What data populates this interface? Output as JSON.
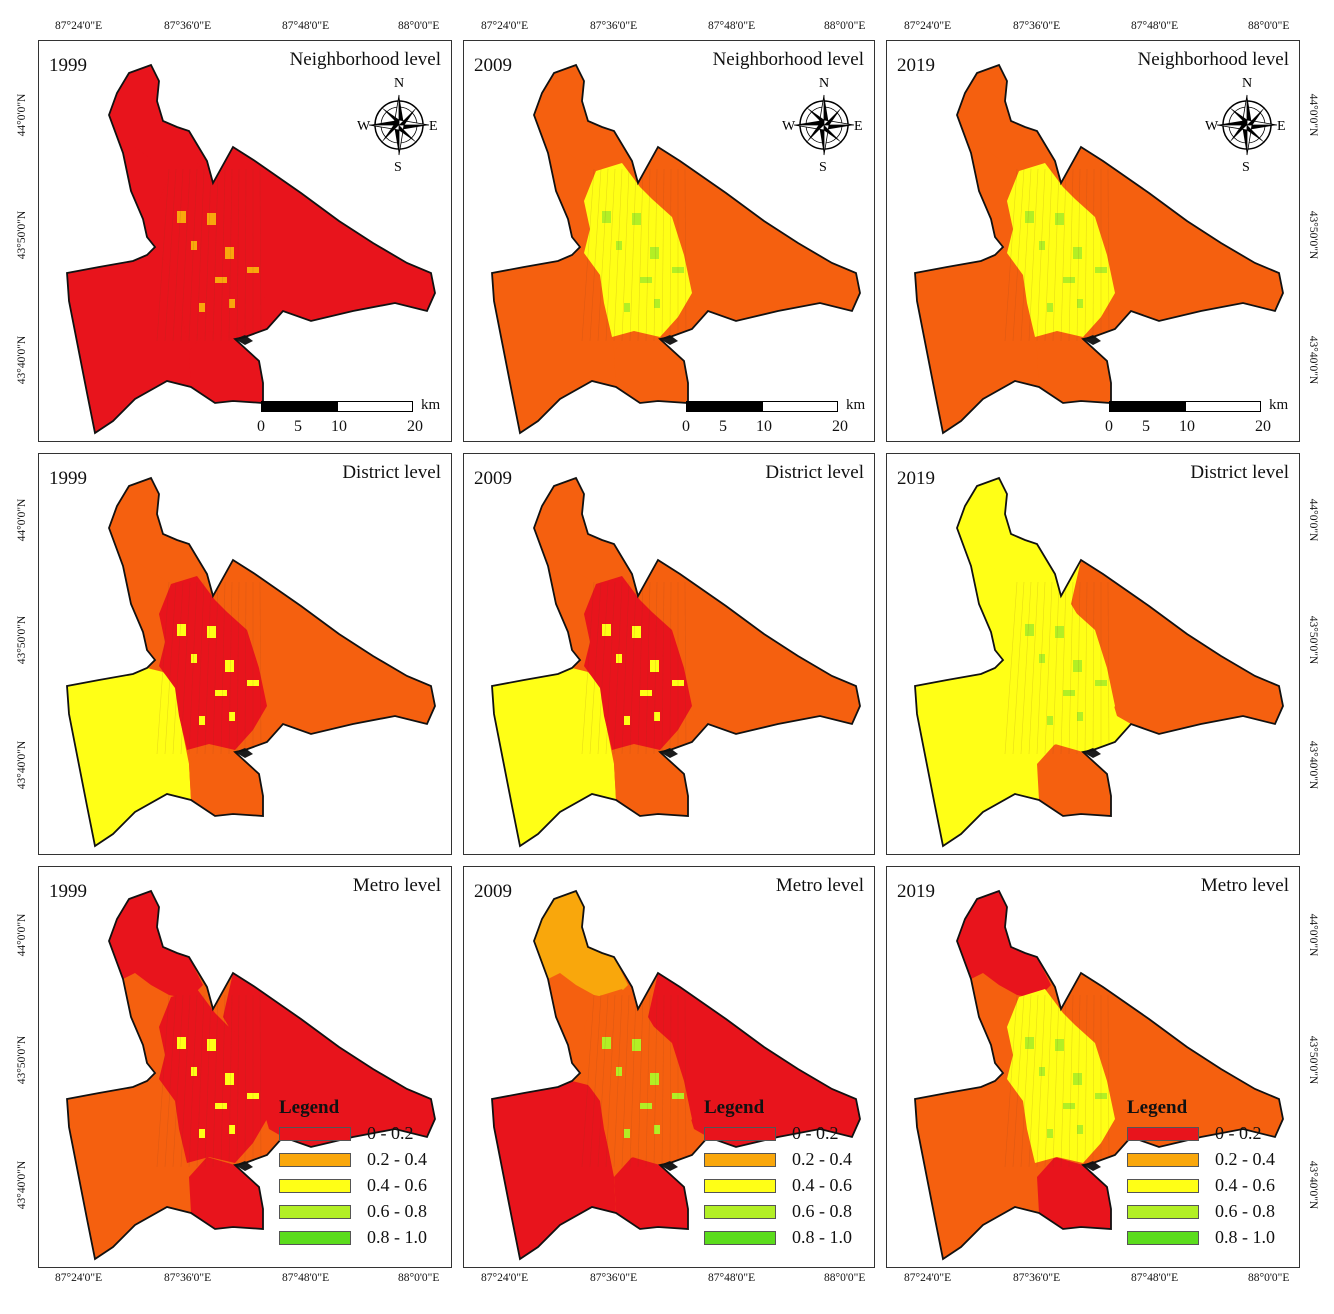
{
  "axes": {
    "lon_ticks": [
      "87°24'0\"E",
      "87°36'0\"E",
      "87°48'0\"E",
      "88°0'0\"E"
    ],
    "lat_ticks": [
      "44°0'0\"N",
      "43°50'0\"N",
      "43°40'0\"N"
    ]
  },
  "colors": {
    "c1": "#e8141c",
    "c2": "#f5600f",
    "c3": "#f9a70c",
    "c4": "#ffff16",
    "c5": "#b2ef25",
    "c6": "#5bdc1c"
  },
  "rows": [
    {
      "level": "Neighborhood level",
      "panels": [
        {
          "year": "1999",
          "base": "c1",
          "core": "c1",
          "west": "c1",
          "south": "c1",
          "north": "c1",
          "east": "c1",
          "accent": "c3"
        },
        {
          "year": "2009",
          "base": "c2",
          "core": "c4",
          "west": "c2",
          "south": "c2",
          "north": "c2",
          "east": "c2",
          "accent": "c5"
        },
        {
          "year": "2019",
          "base": "c2",
          "core": "c4",
          "west": "c2",
          "south": "c2",
          "north": "c2",
          "east": "c2",
          "accent": "c5"
        }
      ]
    },
    {
      "level": "District level",
      "panels": [
        {
          "year": "1999",
          "base": "c2",
          "core": "c1",
          "west": "c4",
          "south": "c2",
          "north": "c2",
          "east": "c2",
          "accent": "c4"
        },
        {
          "year": "2009",
          "base": "c2",
          "core": "c1",
          "west": "c4",
          "south": "c2",
          "north": "c2",
          "east": "c2",
          "accent": "c4"
        },
        {
          "year": "2019",
          "base": "c4",
          "core": "c4",
          "west": "c4",
          "south": "c2",
          "north": "c4",
          "east": "c2",
          "accent": "c5"
        }
      ]
    },
    {
      "level": "Metro level",
      "panels": [
        {
          "year": "1999",
          "base": "c2",
          "core": "c1",
          "west": "c2",
          "south": "c1",
          "north": "c1",
          "east": "c1",
          "accent": "c4"
        },
        {
          "year": "2009",
          "base": "c2",
          "core": "c2",
          "west": "c1",
          "south": "c1",
          "north": "c3",
          "east": "c1",
          "accent": "c5"
        },
        {
          "year": "2019",
          "base": "c2",
          "core": "c4",
          "west": "c2",
          "south": "c1",
          "north": "c1",
          "east": "c2",
          "accent": "c5"
        }
      ]
    }
  ],
  "compass": {
    "n": "N",
    "s": "S",
    "e": "E",
    "w": "W"
  },
  "scalebar": {
    "labels": [
      "0",
      "5",
      "10",
      "20"
    ],
    "unit": "km"
  },
  "legend": {
    "title": "Legend",
    "items": [
      {
        "label": "0 - 0.2",
        "color": "#e8141c"
      },
      {
        "label": "0.2 - 0.4",
        "color": "#f9a70c"
      },
      {
        "label": "0.4 - 0.6",
        "color": "#ffff16"
      },
      {
        "label": "0.6 - 0.8",
        "color": "#b2ef25"
      },
      {
        "label": "0.8 - 1.0",
        "color": "#5bdc1c"
      }
    ]
  }
}
